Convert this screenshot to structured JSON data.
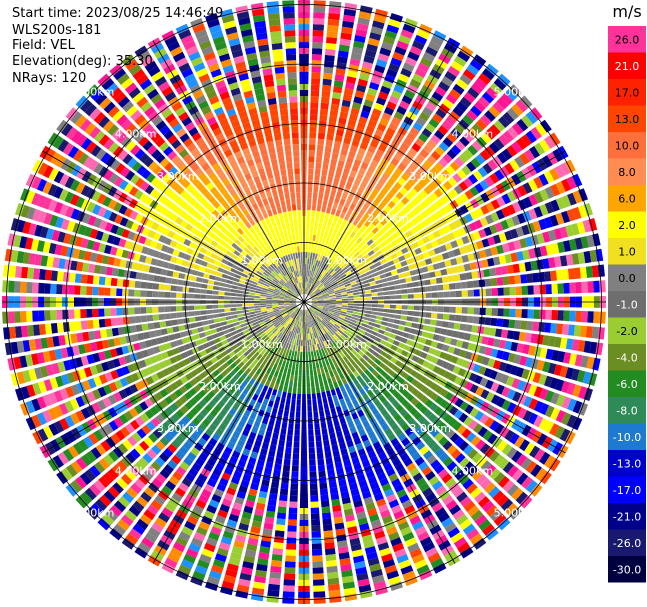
{
  "header": {
    "start_time": "Start time: 2023/08/25 14:46:49",
    "instrument": "WLS200s-181",
    "field": "Field: VEL",
    "elevation": "Elevation(deg): 35.30",
    "nrays": "NRays: 120"
  },
  "map": {
    "range_ring_labels": [
      "1.00km",
      "2.00km",
      "3.00km",
      "4.00km",
      "5.00km"
    ],
    "n_rays": 120
  },
  "colorbar": {
    "unit": "m/s",
    "levels": [
      "26.0",
      "21.0",
      "17.0",
      "13.0",
      "10.0",
      "8.0",
      "6.0",
      "2.0",
      "1.0",
      "0.0",
      "-1.0",
      "-2.0",
      "-4.0",
      "-6.0",
      "-8.0",
      "-10.0",
      "-13.0",
      "-17.0",
      "-21.0",
      "-26.0",
      "-30.0"
    ],
    "colors": [
      "#ff3399",
      "#ff0000",
      "#ff2200",
      "#ff4500",
      "#ff6f3c",
      "#ff8c50",
      "#ffa500",
      "#ffff00",
      "#f0e020",
      "#808080",
      "#6e6e6e",
      "#9acd32",
      "#6b8e23",
      "#228b22",
      "#2e8b57",
      "#1e7ad0",
      "#0000cd",
      "#0000ff",
      "#00008b",
      "#191970",
      "#000040"
    ],
    "label_colors": [
      "#000",
      "#fff",
      "#000",
      "#000",
      "#000",
      "#000",
      "#000",
      "#000",
      "#000",
      "#000",
      "#fff",
      "#000",
      "#fff",
      "#fff",
      "#fff",
      "#fff",
      "#fff",
      "#fff",
      "#fff",
      "#fff",
      "#fff"
    ]
  }
}
